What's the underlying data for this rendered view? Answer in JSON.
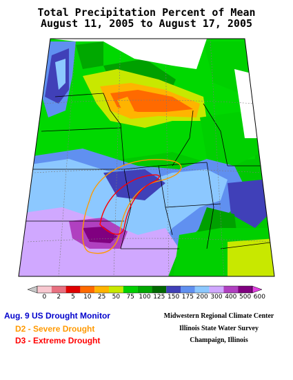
{
  "title": {
    "line1": "Total Precipitation Percent of Mean",
    "line2": "August 11, 2005 to August 17, 2005"
  },
  "legend": {
    "labels": [
      "0",
      "2",
      "5",
      "10",
      "25",
      "50",
      "75",
      "100",
      "125",
      "150",
      "175",
      "200",
      "300",
      "400",
      "500",
      "600"
    ],
    "colors": [
      "#c8c8c8",
      "#f8c8d0",
      "#e87080",
      "#e00000",
      "#ff6a00",
      "#ffb400",
      "#c8e800",
      "#00d000",
      "#00a800",
      "#006800",
      "#4040b8",
      "#6090f0",
      "#8cc8ff",
      "#d0a8ff",
      "#b040c0",
      "#800080",
      "#e040e0"
    ]
  },
  "drought_monitor": {
    "title": "Aug. 9 US Drought Monitor",
    "d2": "D2 - Severe Drought",
    "d3": "D3 - Extreme Drought",
    "title_color": "#0000cc",
    "d2_color": "#ff9900",
    "d3_color": "#ff0000"
  },
  "credits": {
    "line1": "Midwestern Regional Climate Center",
    "line2": "Illinois State Water Survey",
    "line3": "Champaign, Illinois"
  }
}
